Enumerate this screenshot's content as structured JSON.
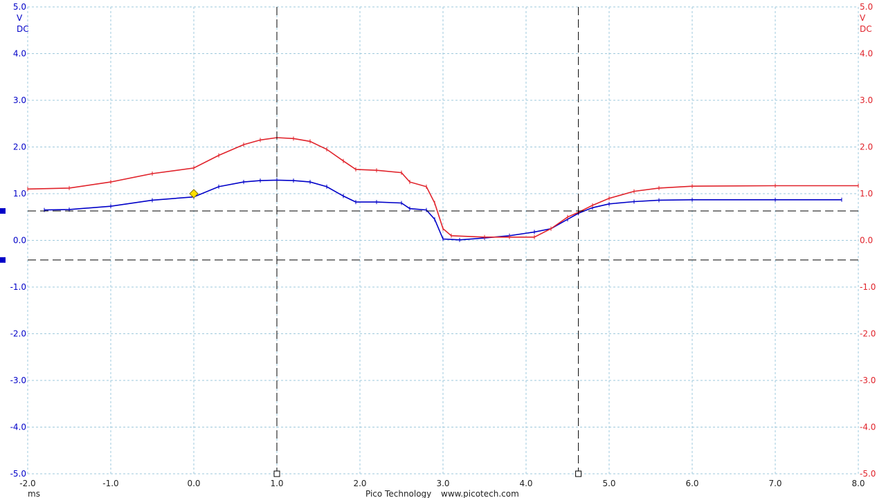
{
  "colors": {
    "channel_a": "#0000c8",
    "channel_b": "#e0222a",
    "grid": "#9ec9dc",
    "trigger": "#ffe000"
  },
  "axes": {
    "left_unit": "V",
    "left_coupling": "DC",
    "right_unit": "V",
    "right_coupling": "DC",
    "x_unit": "ms",
    "y_ticks": [
      "5.0",
      "4.0",
      "3.0",
      "2.0",
      "1.0",
      "0.0",
      "-1.0",
      "-2.0",
      "-3.0",
      "-4.0",
      "-5.0"
    ],
    "x_ticks": [
      "-2.0",
      "-1.0",
      "0.0",
      "1.0",
      "2.0",
      "3.0",
      "4.0",
      "5.0",
      "6.0",
      "7.0",
      "8.0"
    ]
  },
  "footer": {
    "brand": "Pico Technology",
    "url": "www.picotech.com"
  },
  "chart_data": {
    "type": "line",
    "xlim": [
      -2.0,
      8.0
    ],
    "ylim": [
      -5.0,
      5.0
    ],
    "grid": true,
    "x_label": "ms",
    "y_label": "V DC",
    "trigger": {
      "x": 0.0,
      "y": 1.0
    },
    "time_cursors": [
      1.0,
      4.63
    ],
    "voltage_cursors": [
      0.63,
      -0.42
    ],
    "channel_markers": [
      0.63,
      -0.42
    ],
    "series": [
      {
        "color": "#0000c8",
        "x": [
          -1.8,
          -1.5,
          -1.0,
          -0.5,
          0.0,
          0.3,
          0.6,
          0.8,
          1.0,
          1.2,
          1.4,
          1.6,
          1.8,
          1.95,
          2.2,
          2.5,
          2.6,
          2.8,
          2.9,
          3.0,
          3.2,
          3.5,
          3.8,
          4.1,
          4.3,
          4.5,
          4.63,
          4.8,
          5.0,
          5.3,
          5.6,
          6.0,
          7.0,
          7.8
        ],
        "y": [
          0.65,
          0.66,
          0.73,
          0.86,
          0.93,
          1.15,
          1.25,
          1.28,
          1.29,
          1.28,
          1.25,
          1.15,
          0.95,
          0.82,
          0.82,
          0.8,
          0.68,
          0.65,
          0.45,
          0.03,
          0.01,
          0.05,
          0.1,
          0.18,
          0.25,
          0.45,
          0.58,
          0.7,
          0.78,
          0.83,
          0.86,
          0.87,
          0.87,
          0.87
        ]
      },
      {
        "color": "#e0222a",
        "x": [
          -2.0,
          -1.5,
          -1.0,
          -0.5,
          0.0,
          0.3,
          0.6,
          0.8,
          1.0,
          1.2,
          1.4,
          1.6,
          1.8,
          1.95,
          2.2,
          2.5,
          2.6,
          2.8,
          2.9,
          3.0,
          3.1,
          3.5,
          3.8,
          4.1,
          4.3,
          4.5,
          4.63,
          4.8,
          5.0,
          5.3,
          5.6,
          6.0,
          7.0,
          8.0
        ],
        "y": [
          1.1,
          1.12,
          1.25,
          1.43,
          1.55,
          1.82,
          2.05,
          2.15,
          2.2,
          2.18,
          2.12,
          1.95,
          1.7,
          1.52,
          1.5,
          1.45,
          1.25,
          1.15,
          0.8,
          0.25,
          0.1,
          0.07,
          0.07,
          0.07,
          0.25,
          0.5,
          0.6,
          0.75,
          0.9,
          1.05,
          1.12,
          1.16,
          1.17,
          1.17
        ]
      }
    ]
  }
}
